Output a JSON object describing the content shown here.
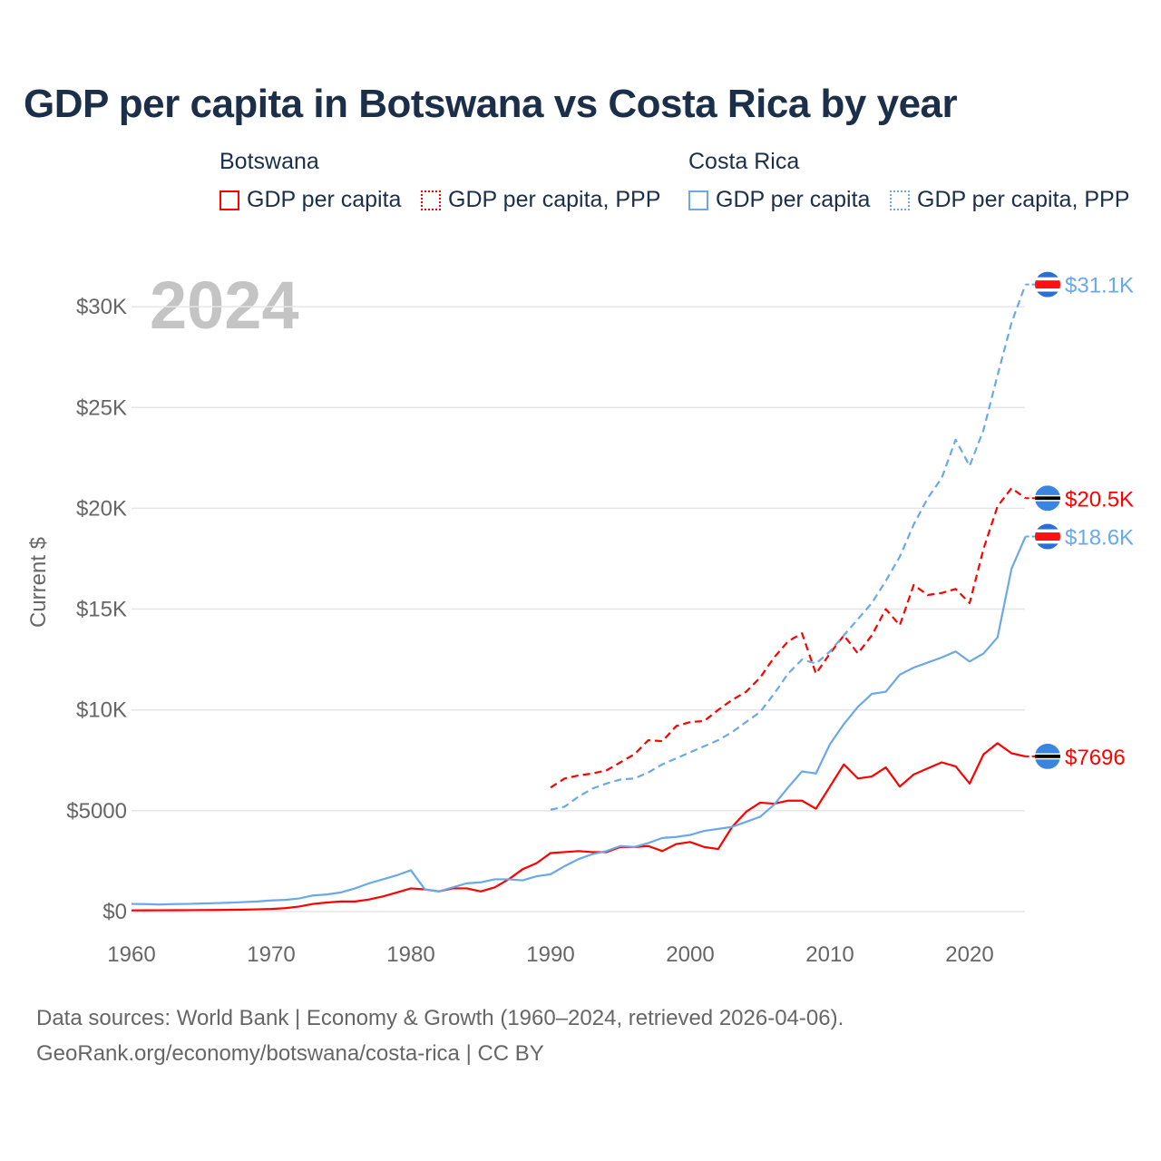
{
  "chart_data": {
    "type": "line",
    "title": "GDP per capita in Botswana vs Costa Rica by year",
    "year_label": "2024",
    "ylabel": "Current $",
    "xlabel": "",
    "xlim": [
      1960,
      2024
    ],
    "ylim": [
      0,
      32000
    ],
    "x_ticks": [
      1960,
      1970,
      1980,
      1990,
      2000,
      2010,
      2020
    ],
    "x_tick_labels": [
      "1960",
      "1970",
      "1980",
      "1990",
      "2000",
      "2010",
      "2020"
    ],
    "y_ticks": [
      0,
      5000,
      10000,
      15000,
      20000,
      25000,
      30000
    ],
    "y_tick_labels": [
      "$0",
      "$5000",
      "$10K",
      "$15K",
      "$20K",
      "$25K",
      "$30K"
    ],
    "grid": true,
    "legend_groups": [
      {
        "name": "Botswana",
        "items": [
          "GDP per capita",
          "GDP per capita, PPP"
        ]
      },
      {
        "name": "Costa Rica",
        "items": [
          "GDP per capita",
          "GDP per capita, PPP"
        ]
      }
    ],
    "series": [
      {
        "name": "Botswana GDP per capita",
        "color": "#ff0000",
        "dash": false,
        "start": 1960,
        "end_label": "$7696",
        "flag": "botswana",
        "values": [
          60,
          62,
          64,
          66,
          70,
          75,
          80,
          88,
          95,
          110,
          130,
          170,
          250,
          380,
          450,
          500,
          500,
          600,
          750,
          950,
          1150,
          1100,
          1000,
          1150,
          1150,
          1000,
          1200,
          1600,
          2100,
          2400,
          2900,
          2950,
          3000,
          2950,
          2950,
          3200,
          3200,
          3250,
          3000,
          3350,
          3450,
          3200,
          3100,
          4200,
          4950,
          5400,
          5350,
          5500,
          5500,
          5100,
          6200,
          7300,
          6600,
          6700,
          7150,
          6200,
          6800,
          7100,
          7400,
          7200,
          6350,
          7800,
          8350,
          7850,
          7696
        ]
      },
      {
        "name": "Botswana GDP per capita, PPP",
        "color": "#ff0000",
        "dash": true,
        "start": 1990,
        "end_label": "$20.5K",
        "flag": "botswana",
        "values": [
          6150,
          6600,
          6750,
          6850,
          7000,
          7400,
          7800,
          8500,
          8450,
          9200,
          9400,
          9450,
          10000,
          10500,
          10900,
          11600,
          12600,
          13400,
          13800,
          11800,
          12800,
          13700,
          12800,
          13700,
          15000,
          14200,
          16200,
          15700,
          15800,
          16000,
          15300,
          18000,
          20100,
          21000,
          20500
        ]
      },
      {
        "name": "Costa Rica GDP per capita",
        "color": "#6aa8e8",
        "dash": false,
        "start": 1960,
        "end_label": "$18.6K",
        "flag": "costa-rica",
        "values": [
          380,
          370,
          350,
          370,
          380,
          400,
          420,
          440,
          470,
          500,
          550,
          580,
          650,
          800,
          850,
          950,
          1150,
          1400,
          1600,
          1800,
          2050,
          1100,
          1000,
          1200,
          1400,
          1450,
          1600,
          1600,
          1550,
          1750,
          1850,
          2250,
          2600,
          2850,
          3000,
          3250,
          3200,
          3400,
          3650,
          3700,
          3800,
          4000,
          4100,
          4200,
          4450,
          4700,
          5300,
          6150,
          6950,
          6850,
          8300,
          9300,
          10150,
          10800,
          10900,
          11750,
          12100,
          12350,
          12600,
          12900,
          12400,
          12800,
          13600,
          17000,
          18600
        ]
      },
      {
        "name": "Costa Rica GDP per capita, PPP",
        "color": "#6aa8e8",
        "dash": true,
        "start": 1990,
        "end_label": "$31.1K",
        "flag": "costa-rica",
        "values": [
          5050,
          5200,
          5700,
          6100,
          6350,
          6550,
          6600,
          6900,
          7300,
          7600,
          7900,
          8200,
          8500,
          8900,
          9400,
          9900,
          10800,
          11800,
          12500,
          12300,
          12900,
          13700,
          14500,
          15300,
          16400,
          17600,
          19200,
          20500,
          21500,
          23400,
          22100,
          23900,
          26600,
          29200,
          31100
        ]
      }
    ]
  },
  "footer": {
    "line1": "Data sources: World Bank | Economy & Growth (1960–2024, retrieved 2026-04-06).",
    "line2": "GeoRank.org/economy/botswana/costa-rica | CC BY"
  }
}
